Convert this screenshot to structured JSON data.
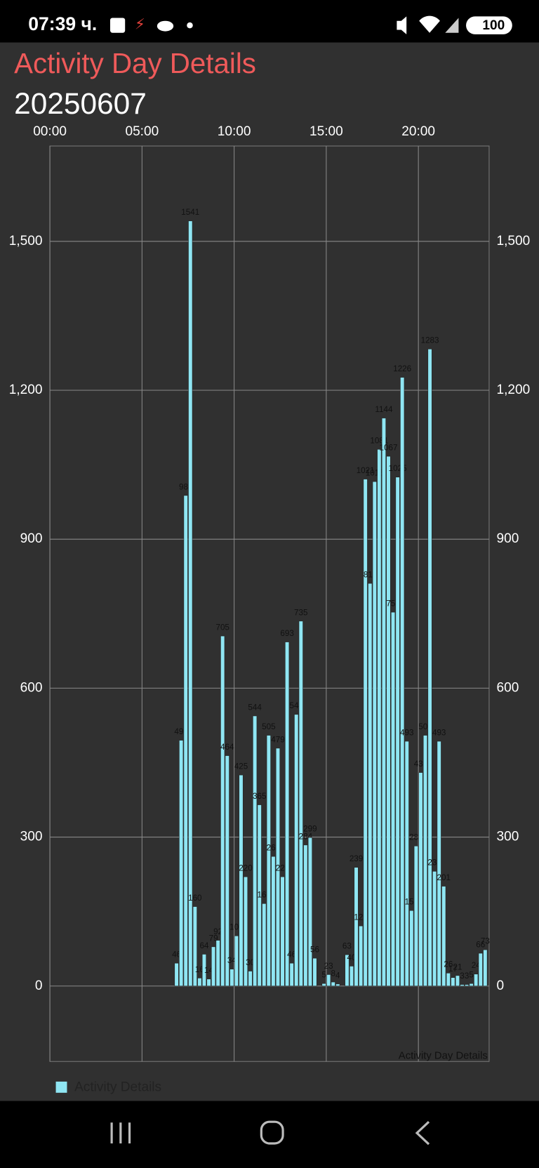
{
  "status_bar": {
    "time": "07:39 ч.",
    "battery": "100"
  },
  "header": {
    "title": "Activity Day Details",
    "date": "20250607"
  },
  "chart_data": {
    "type": "bar",
    "description": "Activity Day Details",
    "x": [
      6.75,
      7,
      7.25,
      7.5,
      7.75,
      8,
      8.25,
      8.5,
      8.75,
      9,
      9.25,
      9.5,
      9.75,
      10,
      10.25,
      10.5,
      10.75,
      11,
      11.25,
      11.5,
      11.75,
      12,
      12.25,
      12.5,
      12.75,
      13,
      13.25,
      13.5,
      13.75,
      14,
      14.25,
      14.75,
      15,
      15.25,
      15.5,
      16,
      16.25,
      16.5,
      16.75,
      17,
      17.25,
      17.5,
      17.75,
      18,
      18.25,
      18.5,
      18.75,
      19,
      19.25,
      19.5,
      19.75,
      20,
      20.25,
      20.5,
      20.75,
      21,
      21.25,
      21.5,
      21.75,
      22,
      22.25,
      22.5,
      22.75,
      23,
      23.25,
      23.5
    ],
    "series": [
      {
        "name": "Activity Details",
        "color": "#8fe6f3",
        "values": [
          46,
          495,
          988,
          1541,
          160,
          16,
          64,
          14,
          79,
          92,
          705,
          464,
          34,
          101,
          425,
          220,
          30,
          544,
          365,
          166,
          505,
          261,
          479,
          220,
          693,
          46,
          547,
          735,
          284,
          299,
          56,
          5,
          23,
          8,
          4,
          63,
          40,
          239,
          121,
          1021,
          811,
          1016,
          1081,
          1144,
          1067,
          753,
          1025,
          1226,
          493,
          152,
          282,
          430,
          505,
          1283,
          231,
          493,
          201,
          26,
          17,
          21,
          3,
          3,
          5,
          24,
          66,
          73
        ]
      }
    ],
    "xlim": [
      0,
      24
    ],
    "xticks": [
      {
        "value": 0,
        "label": "00:00"
      },
      {
        "value": 5,
        "label": "05:00"
      },
      {
        "value": 10,
        "label": "10:00"
      },
      {
        "value": 15,
        "label": "15:00"
      },
      {
        "value": 20,
        "label": "20:00"
      }
    ],
    "ylim": [
      -152,
      1692
    ],
    "yticks": [
      0,
      300,
      600,
      900,
      {
        "value": 1200,
        "label": "1,200"
      },
      {
        "value": 1500,
        "label": "1,500"
      }
    ],
    "y2lim": [
      -152,
      1692
    ],
    "y2ticks": [
      0,
      300,
      600,
      900,
      {
        "value": 1200,
        "label": "1,200"
      },
      {
        "value": 1500,
        "label": "1,500"
      }
    ],
    "grid": true,
    "legend": "bottom-left"
  }
}
